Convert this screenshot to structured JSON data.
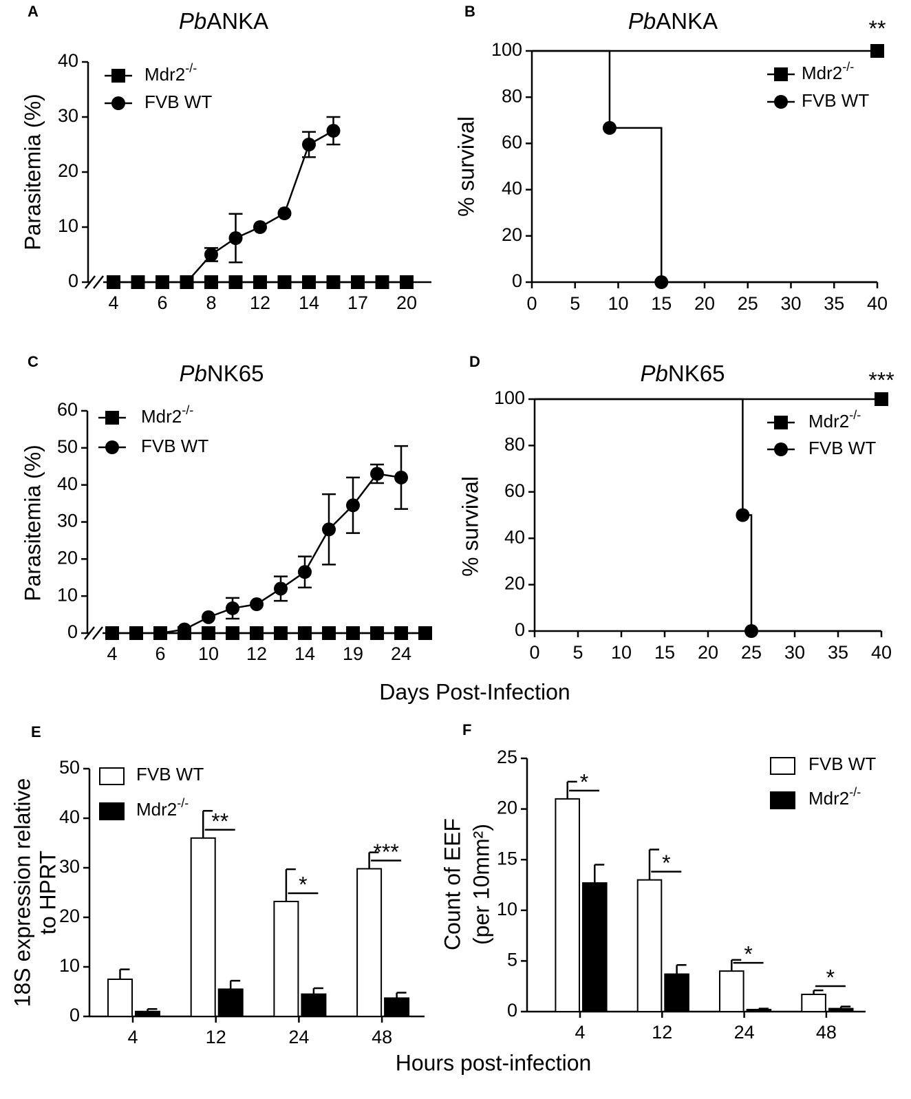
{
  "chart_data": [
    {
      "panel": "A",
      "type": "line",
      "title_italic": "Pb",
      "title": "ANKA",
      "ylabel": "Parasitemia (%)",
      "categories": [
        "4",
        null,
        "6",
        null,
        "8",
        null,
        "12",
        null,
        "14",
        null,
        "17",
        null,
        "20"
      ],
      "ylim": [
        0,
        40
      ],
      "yticks": [
        0,
        10,
        20,
        30,
        40
      ],
      "series": [
        {
          "name": "Mdr2",
          "name_superscript": "-/-",
          "marker": "square",
          "color": "#000000",
          "values": [
            0,
            0,
            0,
            0,
            0,
            0,
            0,
            0,
            0,
            0,
            0,
            0,
            0
          ]
        },
        {
          "name": "FVB WT",
          "marker": "circle",
          "color": "#000000",
          "values": [
            null,
            null,
            null,
            0,
            5,
            8,
            10,
            12.5,
            25,
            27.5,
            null,
            null,
            null
          ],
          "errors": [
            null,
            null,
            null,
            null,
            1.2,
            4.4,
            null,
            null,
            2.3,
            2.5,
            null,
            null,
            null
          ]
        }
      ]
    },
    {
      "panel": "B",
      "type": "step",
      "title_italic": "Pb",
      "title": "ANKA",
      "ylabel": "% survival",
      "annotation": "**",
      "xlim": [
        0,
        40
      ],
      "xticks": [
        0,
        5,
        10,
        15,
        20,
        25,
        30,
        35,
        40
      ],
      "ylim": [
        0,
        100
      ],
      "yticks": [
        0,
        20,
        40,
        60,
        80,
        100
      ],
      "series": [
        {
          "name": "Mdr2",
          "name_superscript": "-/-",
          "marker": "square",
          "color": "#000000",
          "x": [
            0,
            40
          ],
          "values": [
            100,
            100
          ]
        },
        {
          "name": "FVB WT",
          "marker": "circle",
          "color": "#000000",
          "x": [
            0,
            9,
            15
          ],
          "values": [
            100,
            66.7,
            0
          ]
        }
      ]
    },
    {
      "panel": "C",
      "type": "line",
      "title_italic": "Pb",
      "title": "NK65",
      "ylabel": "Parasitemia (%)",
      "categories": [
        "4",
        null,
        "6",
        null,
        "10",
        null,
        "12",
        null,
        "14",
        null,
        "19",
        null,
        "24",
        null
      ],
      "ylim": [
        0,
        60
      ],
      "yticks": [
        0,
        10,
        20,
        30,
        40,
        50,
        60
      ],
      "series": [
        {
          "name": "Mdr2",
          "name_superscript": "-/-",
          "marker": "square",
          "color": "#000000",
          "values": [
            0,
            0,
            0,
            0,
            0,
            0,
            0,
            0,
            0,
            0,
            0,
            0,
            0,
            0
          ]
        },
        {
          "name": "FVB WT",
          "marker": "circle",
          "color": "#000000",
          "values": [
            null,
            null,
            0,
            1,
            4.3,
            6.7,
            7.8,
            12,
            16.5,
            28,
            34.5,
            43,
            42,
            null
          ],
          "errors": [
            null,
            null,
            null,
            null,
            null,
            2.8,
            null,
            3.3,
            4.2,
            9.5,
            7.5,
            2.5,
            8.5,
            null
          ]
        }
      ]
    },
    {
      "panel": "D",
      "type": "step",
      "title_italic": "Pb",
      "title": "NK65",
      "ylabel": "% survival",
      "annotation": "***",
      "xlim": [
        0,
        40
      ],
      "xticks": [
        0,
        5,
        10,
        15,
        20,
        25,
        30,
        35,
        40
      ],
      "ylim": [
        0,
        100
      ],
      "yticks": [
        0,
        20,
        40,
        60,
        80,
        100
      ],
      "series": [
        {
          "name": "Mdr2",
          "name_superscript": "-/-",
          "marker": "square",
          "color": "#000000",
          "x": [
            0,
            40
          ],
          "values": [
            100,
            100
          ]
        },
        {
          "name": "FVB WT",
          "marker": "circle",
          "color": "#000000",
          "x": [
            0,
            24,
            25
          ],
          "values": [
            100,
            50,
            0
          ]
        }
      ]
    },
    {
      "panel": "E",
      "type": "bar",
      "ylabel": [
        "18S expression relative",
        "to HPRT"
      ],
      "categories": [
        "4",
        "12",
        "24",
        "48"
      ],
      "ylim": [
        0,
        50
      ],
      "yticks": [
        0,
        10,
        20,
        30,
        40,
        50
      ],
      "significance": [
        null,
        "**",
        "*",
        "***"
      ],
      "series": [
        {
          "name": "FVB WT",
          "color": "#ffffff",
          "values": [
            7.5,
            36,
            23.2,
            29.8
          ],
          "errors": [
            2,
            5.5,
            6.5,
            3.3
          ]
        },
        {
          "name": "Mdr2",
          "name_superscript": "-/-",
          "color": "#000000",
          "values": [
            1,
            5.5,
            4.5,
            3.7
          ],
          "errors": [
            0.5,
            1.7,
            1.2,
            1.1
          ]
        }
      ]
    },
    {
      "panel": "F",
      "type": "bar",
      "ylabel": [
        "Count of EEF",
        "(per 10mm²)"
      ],
      "categories": [
        "4",
        "12",
        "24",
        "48"
      ],
      "ylim": [
        0,
        25
      ],
      "yticks": [
        0,
        5,
        10,
        15,
        20,
        25
      ],
      "significance": [
        "*",
        "*",
        "*",
        "*"
      ],
      "series": [
        {
          "name": "FVB WT",
          "color": "#ffffff",
          "values": [
            21,
            13,
            4,
            1.7
          ],
          "errors": [
            1.7,
            3,
            1.1,
            0.4
          ]
        },
        {
          "name": "Mdr2",
          "name_superscript": "-/-",
          "color": "#000000",
          "values": [
            12.7,
            3.7,
            0.2,
            0.3
          ],
          "errors": [
            1.8,
            0.9,
            0.1,
            0.2
          ]
        }
      ]
    }
  ],
  "shared_x_labels": [
    "Days Post-Infection",
    "Hours post-infection"
  ]
}
